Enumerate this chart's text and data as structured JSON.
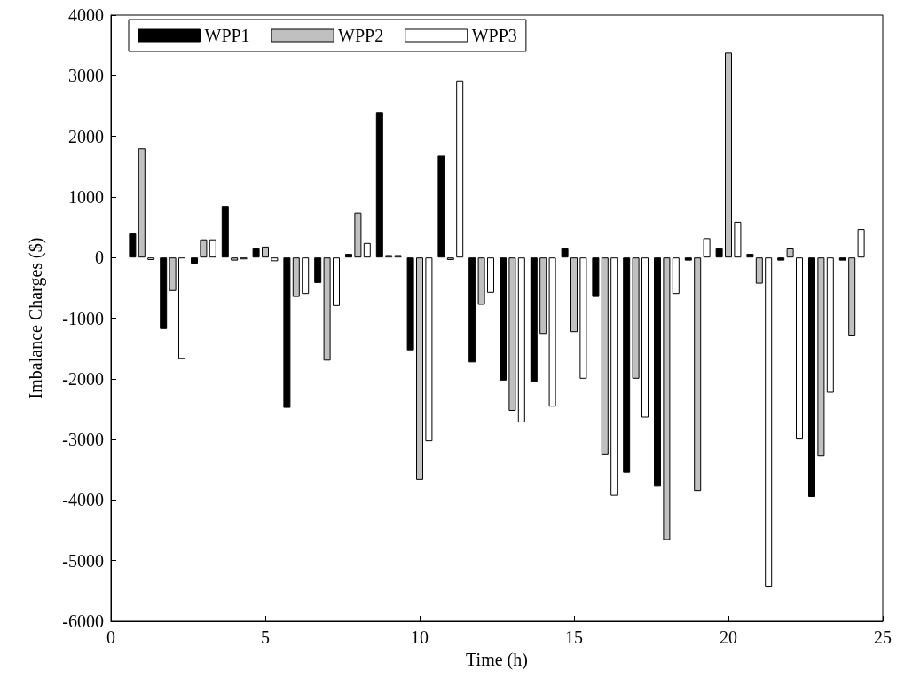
{
  "chart_data": {
    "type": "bar",
    "xlabel": "Time (h)",
    "ylabel": "Imbalance Charges ($)",
    "x": [
      1,
      2,
      3,
      4,
      5,
      6,
      7,
      8,
      9,
      10,
      11,
      12,
      13,
      14,
      15,
      16,
      17,
      18,
      19,
      20,
      21,
      22,
      23,
      24
    ],
    "xlim": [
      0,
      25
    ],
    "xticks": [
      0,
      5,
      10,
      15,
      20,
      25
    ],
    "ylim": [
      -6000,
      4000
    ],
    "yticks": [
      -6000,
      -5000,
      -4000,
      -3000,
      -2000,
      -1000,
      0,
      1000,
      2000,
      3000,
      4000
    ],
    "grid": false,
    "legend": "top left",
    "series": [
      {
        "name": "WPP1",
        "color": "#000000",
        "values": [
          400,
          -1180,
          -100,
          850,
          150,
          -2480,
          -420,
          60,
          2400,
          -1530,
          1680,
          -1730,
          -2030,
          -2050,
          150,
          -650,
          -3550,
          -3780,
          -50,
          150,
          60,
          -50,
          -3950,
          -50
        ]
      },
      {
        "name": "WPP2",
        "color": "#c0c0c0",
        "values": [
          1800,
          -550,
          300,
          -50,
          180,
          -650,
          -1700,
          740,
          40,
          -3670,
          -40,
          -780,
          -2530,
          -1260,
          -1230,
          -3260,
          -2000,
          -4660,
          -3850,
          3380,
          -430,
          150,
          -3280,
          -1300
        ]
      },
      {
        "name": "WPP3",
        "color": "#ffffff",
        "values": [
          -40,
          -1670,
          300,
          -30,
          -60,
          -600,
          -800,
          240,
          40,
          -3030,
          2920,
          -580,
          -2720,
          -2460,
          -2000,
          -3930,
          -2640,
          -600,
          320,
          590,
          -5430,
          -3000,
          -2230,
          470
        ]
      }
    ]
  }
}
